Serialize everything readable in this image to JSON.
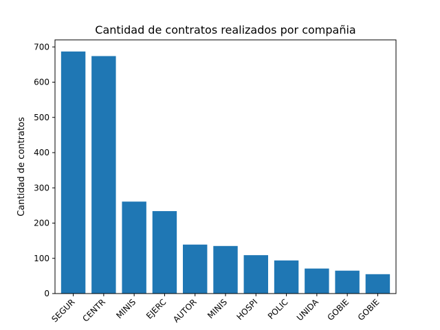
{
  "chart_data": {
    "type": "bar",
    "title": "Cantidad de contratos realizados por compañia",
    "xlabel": "",
    "ylabel": "Cantidad de contratos",
    "categories": [
      "SEGUR",
      "CENTR",
      "MINIS",
      "EJERC",
      "AUTOR",
      "MINIS",
      "HOSPI",
      "POLIC",
      "UNIDA",
      "GOBIE",
      "GOBIE"
    ],
    "values": [
      687,
      674,
      261,
      234,
      139,
      135,
      109,
      94,
      71,
      65,
      55
    ],
    "ylim": [
      0,
      720
    ],
    "yticks": [
      0,
      100,
      200,
      300,
      400,
      500,
      600,
      700
    ],
    "bar_color": "#1f77b4",
    "grid": false,
    "legend": "none"
  }
}
